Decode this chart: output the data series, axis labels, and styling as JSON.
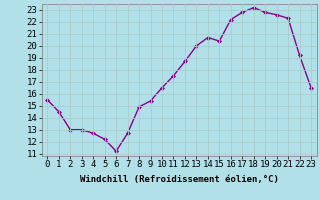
{
  "x": [
    0,
    1,
    2,
    3,
    4,
    5,
    6,
    7,
    8,
    9,
    10,
    11,
    12,
    13,
    14,
    15,
    16,
    17,
    18,
    19,
    20,
    21,
    22,
    23
  ],
  "y": [
    15.5,
    14.5,
    13.0,
    13.0,
    12.7,
    12.2,
    11.2,
    12.7,
    14.9,
    15.4,
    16.5,
    17.5,
    18.7,
    20.0,
    20.7,
    20.4,
    22.2,
    22.8,
    23.2,
    22.8,
    22.6,
    22.3,
    19.2,
    16.5
  ],
  "line_color": "#8B008B",
  "marker": "D",
  "marker_size": 2.0,
  "bg_color": "#b2e0e8",
  "grid_color": "#aacccc",
  "xlabel": "Windchill (Refroidissement éolien,°C)",
  "xlabel_fontsize": 6.5,
  "ylabel_ticks": [
    11,
    12,
    13,
    14,
    15,
    16,
    17,
    18,
    19,
    20,
    21,
    22,
    23
  ],
  "xlim": [
    -0.5,
    23.5
  ],
  "ylim": [
    10.8,
    23.5
  ],
  "tick_fontsize": 6.5,
  "line_width": 1.0
}
